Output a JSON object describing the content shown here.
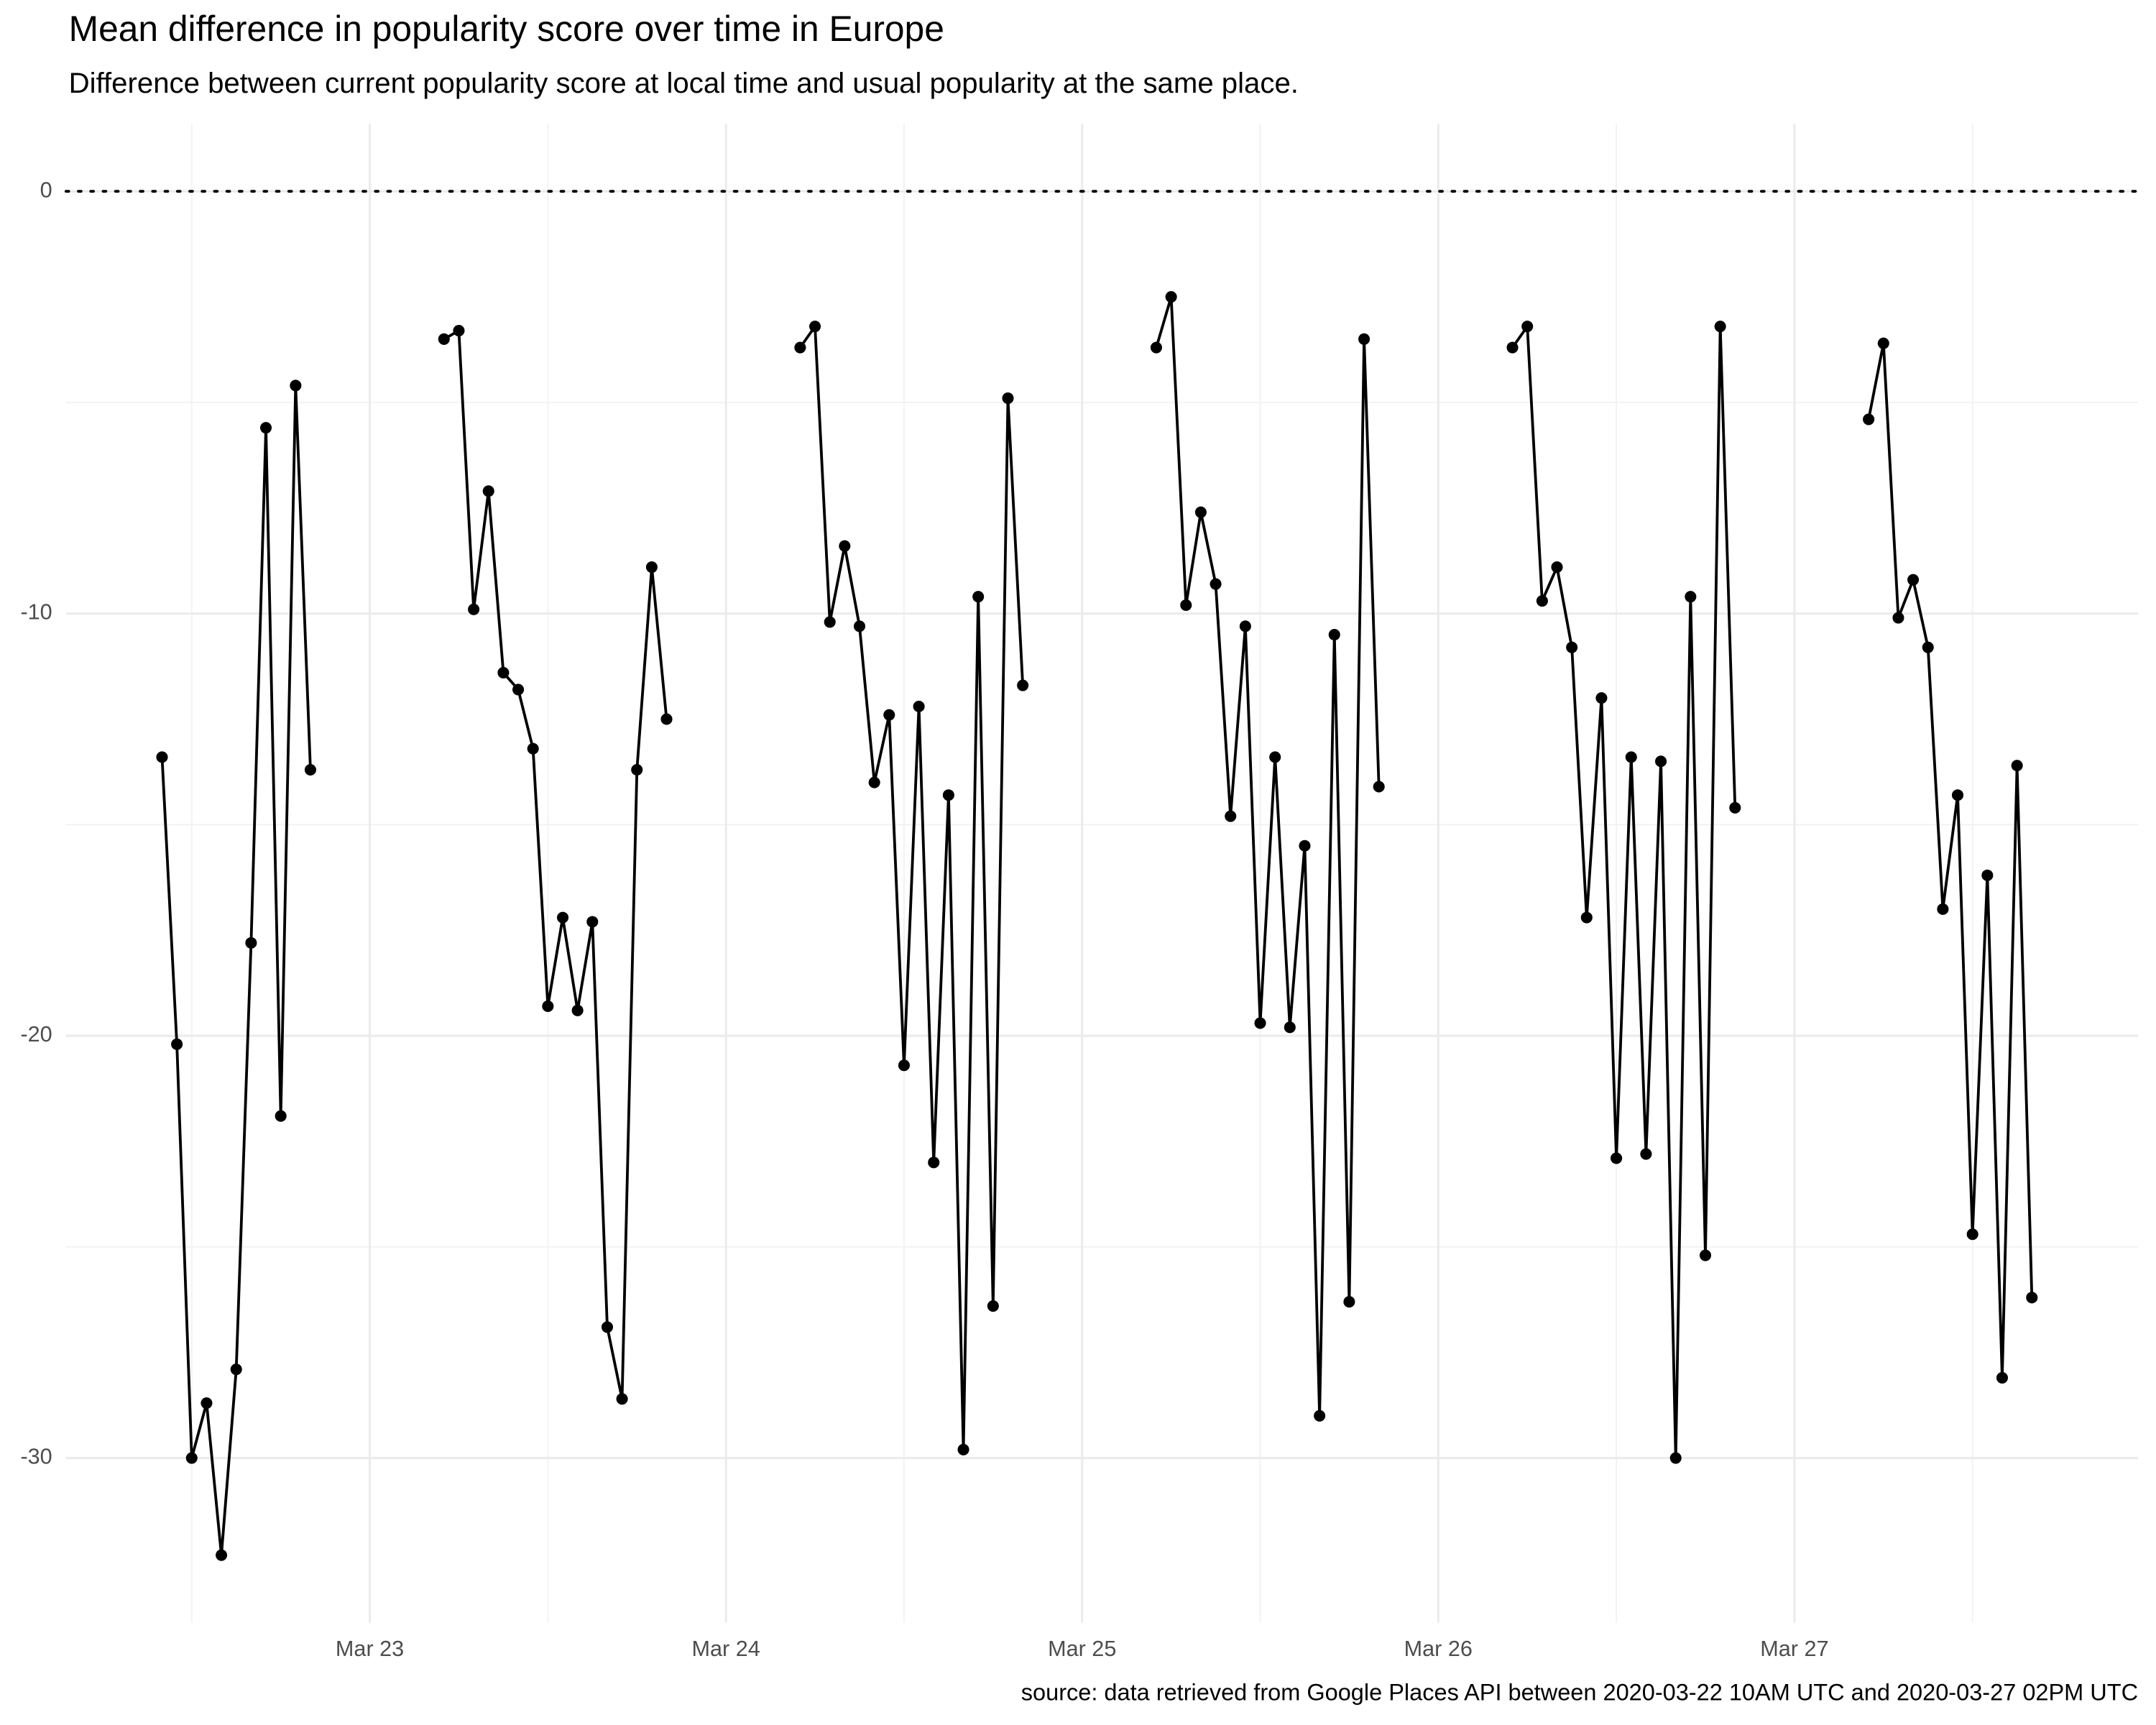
{
  "chart_data": {
    "type": "line",
    "title": "Mean difference in popularity score over time in Europe",
    "subtitle": "Difference between current popularity score at local time and usual popularity at the same place.",
    "caption": "source: data retrieved from Google Places API between 2020-03-22 10AM UTC and 2020-03-27 02PM UTC",
    "x": [
      22.4167,
      22.4583,
      22.5,
      22.5417,
      22.5833,
      22.625,
      22.6667,
      22.7083,
      22.75,
      22.7917,
      22.8333,
      null,
      23.2083,
      23.25,
      23.2917,
      23.3333,
      23.375,
      23.4167,
      23.4583,
      23.5,
      23.5417,
      23.5833,
      23.625,
      23.6667,
      23.7083,
      23.75,
      23.7917,
      23.8333,
      null,
      24.2083,
      24.25,
      24.2917,
      24.3333,
      24.375,
      24.4167,
      24.4583,
      24.5,
      24.5417,
      24.5833,
      24.625,
      24.6667,
      24.7083,
      24.75,
      24.7917,
      24.8333,
      null,
      25.2083,
      25.25,
      25.2917,
      25.3333,
      25.375,
      25.4167,
      25.4583,
      25.5,
      25.5417,
      25.5833,
      25.625,
      25.6667,
      25.7083,
      25.75,
      25.7917,
      25.8333,
      null,
      26.2083,
      26.25,
      26.2917,
      26.3333,
      26.375,
      26.4167,
      26.4583,
      26.5,
      26.5417,
      26.5833,
      26.625,
      26.6667,
      26.7083,
      26.75,
      26.7917,
      26.8333,
      null,
      27.2083,
      27.25,
      27.2917,
      27.3333,
      27.375,
      27.4167,
      27.4583,
      27.5,
      27.5417,
      27.5833,
      27.625,
      27.6667
    ],
    "series": [
      {
        "color": "#000000",
        "values": [
          -13.4,
          -20.2,
          -30.0,
          -28.7,
          -32.3,
          -27.9,
          -17.8,
          -5.6,
          -21.9,
          -4.6,
          -13.7,
          null,
          -3.5,
          -3.3,
          -9.9,
          -7.1,
          -11.4,
          -11.8,
          -13.2,
          -19.3,
          -17.2,
          -19.4,
          -17.3,
          -26.9,
          -28.6,
          -13.7,
          -8.9,
          -12.5,
          null,
          -3.7,
          -3.2,
          -10.2,
          -8.4,
          -10.3,
          -14.0,
          -12.4,
          -20.7,
          -12.2,
          -23.0,
          -14.3,
          -29.8,
          -9.6,
          -26.4,
          -4.9,
          -11.7,
          null,
          -3.7,
          -2.5,
          -9.8,
          -7.6,
          -9.3,
          -14.8,
          -10.3,
          -19.7,
          -13.4,
          -19.8,
          -15.5,
          -29.0,
          -10.5,
          -26.3,
          -3.5,
          -14.1,
          null,
          -3.7,
          -3.2,
          -9.7,
          -8.9,
          -10.8,
          -17.2,
          -12.0,
          -22.9,
          -13.4,
          -22.8,
          -13.5,
          -30.0,
          -9.6,
          -25.2,
          -3.2,
          -14.6,
          null,
          -5.4,
          -3.6,
          -10.1,
          -9.2,
          -10.8,
          -17.0,
          -14.3,
          -24.7,
          -16.2,
          -28.1,
          -13.6,
          -26.2
        ]
      }
    ],
    "xlim": [
      22.147,
      27.965
    ],
    "xticks": [
      {
        "value": 23,
        "label": "Mar 23"
      },
      {
        "value": 24,
        "label": "Mar 24"
      },
      {
        "value": 25,
        "label": "Mar 25"
      },
      {
        "value": 26,
        "label": "Mar 26"
      },
      {
        "value": 27,
        "label": "Mar 27"
      }
    ],
    "ylim": [
      -33.9,
      1.6
    ],
    "yticks": [
      -30,
      -20,
      -10,
      0
    ],
    "hline": 0,
    "grid": true
  }
}
